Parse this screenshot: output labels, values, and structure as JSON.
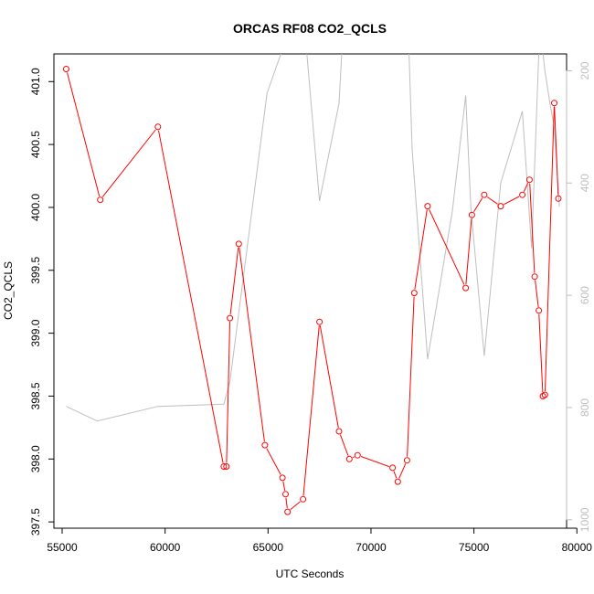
{
  "chart_data": {
    "type": "line",
    "title": "ORCAS RF08 CO2_QCLS",
    "xlabel": "UTC Seconds",
    "ylabel": "CO2_QCLS",
    "xlim": [
      54600,
      79500
    ],
    "ylim": [
      397.45,
      401.22
    ],
    "xticks": [
      55000,
      60000,
      65000,
      70000,
      75000,
      80000
    ],
    "yticks": [
      397.5,
      398.0,
      398.5,
      399.0,
      399.5,
      400.0,
      400.5,
      401.0
    ],
    "y2lim": [
      1015,
      170
    ],
    "y2ticks": [
      200,
      400,
      600,
      800,
      1000
    ],
    "legend": "none",
    "grid": false,
    "series": [
      {
        "role": "primary",
        "color": "#ff0000",
        "marker": "open-circle",
        "x": [
          55200,
          56850,
          59650,
          62850,
          62980,
          63150,
          63580,
          64850,
          65700,
          65850,
          65950,
          66700,
          67500,
          68450,
          68950,
          69350,
          71050,
          71300,
          71750,
          72100,
          72750,
          74600,
          74900,
          75500,
          76300,
          77350,
          77700,
          77950,
          78150,
          78350,
          78450,
          78900,
          79100
        ],
        "y": [
          401.1,
          400.06,
          400.64,
          397.94,
          397.94,
          399.12,
          399.71,
          398.11,
          397.85,
          397.72,
          397.58,
          397.68,
          399.09,
          398.22,
          398.0,
          398.03,
          397.93,
          397.82,
          397.99,
          399.32,
          400.01,
          399.36,
          399.94,
          400.1,
          400.01,
          400.1,
          400.22,
          399.45,
          399.18,
          398.5,
          398.51,
          400.83,
          400.07
        ]
      },
      {
        "role": "secondary",
        "color": "#bebebe",
        "x": [
          55200,
          56700,
          59650,
          62850,
          63150,
          64950,
          65750,
          66100,
          66700,
          67500,
          68450,
          68900,
          69400,
          71050,
          71200,
          71750,
          72000,
          72750,
          73950,
          74600,
          74850,
          75500,
          76300,
          77350,
          77800,
          78200,
          78450,
          78700,
          78900,
          79150
        ],
        "y": [
          798,
          824,
          798,
          794,
          754,
          240,
          157,
          90,
          90,
          432,
          258,
          -50,
          168,
          164,
          130,
          57,
          340,
          714,
          450,
          244,
          442,
          708,
          400,
          272,
          516,
          120,
          200,
          260,
          300,
          442
        ]
      }
    ]
  }
}
